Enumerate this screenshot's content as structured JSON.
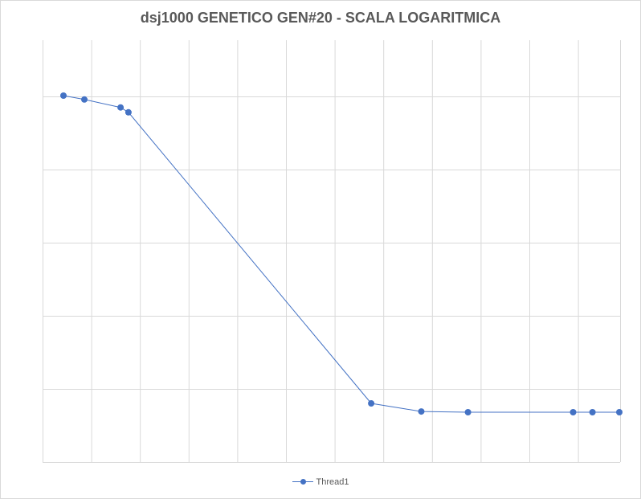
{
  "chart_data": {
    "type": "line",
    "title": "dsj1000 GENETICO  GEN#20 - SCALA LOGARITMICA",
    "xlabel": "",
    "ylabel": "",
    "y_scale": "log",
    "x": [
      1,
      1.42,
      2.15,
      2.31,
      7.2,
      8.21,
      9.15,
      11.27,
      11.66,
      12.2
    ],
    "series": [
      {
        "name": "Thread1",
        "y": [
          14460,
          13820,
          12600,
          11900,
          400,
          364,
          361,
          361,
          361,
          361
        ]
      }
    ],
    "grid": true,
    "legend_position": "bottom",
    "colors": {
      "series": "#4472c4",
      "grid": "#d9d9d9"
    }
  }
}
